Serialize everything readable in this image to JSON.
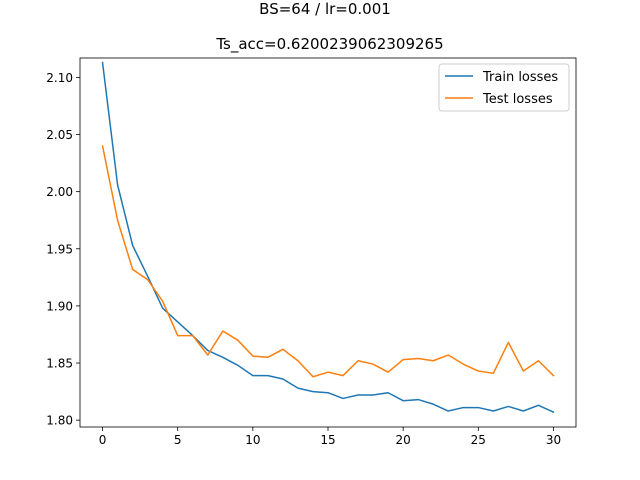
{
  "chart_data": {
    "type": "line",
    "title": "BS=64 / lr=0.001",
    "subtitle": "Ts_acc=0.6200239062309265",
    "xlabel": "",
    "ylabel": "",
    "xlim": [
      -1.5,
      31.5
    ],
    "ylim": [
      1.794,
      2.117
    ],
    "grid": false,
    "legend_position": "top-right",
    "x_ticks": [
      0,
      5,
      10,
      15,
      20,
      25,
      30
    ],
    "x_tick_labels": [
      "0",
      "5",
      "10",
      "15",
      "20",
      "25",
      "30"
    ],
    "y_ticks": [
      1.8,
      1.85,
      1.9,
      1.95,
      2.0,
      2.05,
      2.1
    ],
    "y_tick_labels": [
      "1.80",
      "1.85",
      "1.90",
      "1.95",
      "2.00",
      "2.05",
      "2.10"
    ],
    "x": [
      0,
      1,
      2,
      3,
      4,
      5,
      6,
      7,
      8,
      9,
      10,
      11,
      12,
      13,
      14,
      15,
      16,
      17,
      18,
      19,
      20,
      21,
      22,
      23,
      24,
      25,
      26,
      27,
      28,
      29,
      30
    ],
    "series": [
      {
        "name": "Train losses",
        "color": "#1f77b4",
        "values": [
          2.113,
          2.006,
          1.953,
          1.926,
          1.898,
          1.886,
          1.874,
          1.861,
          1.855,
          1.848,
          1.839,
          1.839,
          1.836,
          1.828,
          1.825,
          1.824,
          1.819,
          1.822,
          1.822,
          1.824,
          1.817,
          1.818,
          1.814,
          1.808,
          1.811,
          1.811,
          1.808,
          1.812,
          1.808,
          1.813,
          1.807
        ]
      },
      {
        "name": "Test losses",
        "color": "#ff7f0e",
        "values": [
          2.04,
          1.975,
          1.932,
          1.923,
          1.904,
          1.874,
          1.874,
          1.857,
          1.878,
          1.87,
          1.856,
          1.855,
          1.862,
          1.852,
          1.838,
          1.842,
          1.839,
          1.852,
          1.849,
          1.842,
          1.853,
          1.854,
          1.852,
          1.857,
          1.849,
          1.843,
          1.841,
          1.868,
          1.843,
          1.852,
          1.839
        ]
      }
    ]
  }
}
